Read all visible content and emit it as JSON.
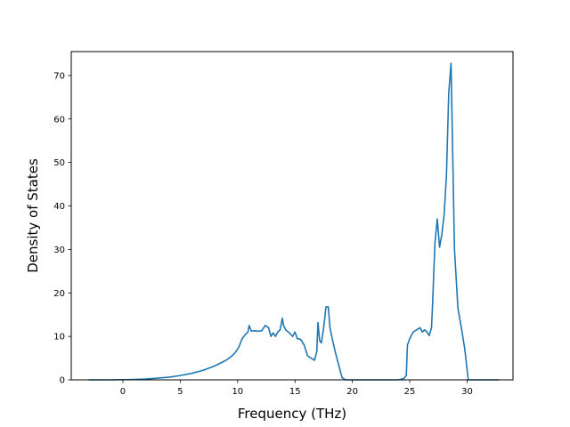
{
  "chart_data": {
    "type": "line",
    "title": "",
    "xlabel": "Frequency (THz)",
    "ylabel": "Density of States",
    "xlim": [
      -4.5,
      34.0
    ],
    "ylim": [
      0,
      75.5
    ],
    "xticks": [
      0,
      5,
      10,
      15,
      20,
      25,
      30
    ],
    "yticks": [
      0,
      10,
      20,
      30,
      40,
      50,
      60,
      70
    ],
    "grid": false,
    "colors": {
      "line": "#1f77b4"
    },
    "series": [
      {
        "name": "",
        "x": [
          -3.0,
          -2.0,
          -1.0,
          0.0,
          1.0,
          2.0,
          3.0,
          4.0,
          5.0,
          6.0,
          7.0,
          8.0,
          9.0,
          9.5,
          9.8,
          10.1,
          10.4,
          10.7,
          10.9,
          11.0,
          11.2,
          11.5,
          11.8,
          12.1,
          12.4,
          12.7,
          12.9,
          13.1,
          13.3,
          13.5,
          13.7,
          13.9,
          14.0,
          14.2,
          14.5,
          14.8,
          15.0,
          15.2,
          15.5,
          15.8,
          16.1,
          16.4,
          16.7,
          16.9,
          17.0,
          17.15,
          17.3,
          17.5,
          17.7,
          17.9,
          18.05,
          18.2,
          18.5,
          18.8,
          19.1,
          19.4,
          19.7,
          20.0,
          21.0,
          22.0,
          23.0,
          24.0,
          24.5,
          24.7,
          24.8,
          25.0,
          25.3,
          25.6,
          25.9,
          26.1,
          26.3,
          26.5,
          26.7,
          26.9,
          27.0,
          27.1,
          27.2,
          27.4,
          27.6,
          27.8,
          28.0,
          28.2,
          28.4,
          28.6,
          28.9,
          29.2,
          29.5,
          29.8,
          30.1,
          31.0,
          32.0,
          32.8
        ],
        "y": [
          0,
          0,
          0,
          0.05,
          0.1,
          0.2,
          0.4,
          0.6,
          1.0,
          1.5,
          2.2,
          3.2,
          4.5,
          5.5,
          6.3,
          7.5,
          9.5,
          10.5,
          11.0,
          12.5,
          11.2,
          11.3,
          11.2,
          11.3,
          12.5,
          12.0,
          10.0,
          10.8,
          10.0,
          11.0,
          11.5,
          14.2,
          12.5,
          11.5,
          10.8,
          10.0,
          11.0,
          9.5,
          9.3,
          8.0,
          5.5,
          5.0,
          4.5,
          6.5,
          13.2,
          9.0,
          8.5,
          12.0,
          16.8,
          16.8,
          12.0,
          10.0,
          6.5,
          3.5,
          0.5,
          0,
          0,
          0,
          0,
          0,
          0,
          0,
          0.3,
          1.0,
          8.0,
          9.5,
          11.0,
          11.5,
          12.0,
          11.0,
          11.5,
          11.0,
          10.2,
          12.0,
          18.0,
          25.0,
          31.5,
          37.0,
          30.5,
          33.5,
          38.0,
          47.0,
          66.0,
          72.8,
          30.0,
          16.5,
          12.0,
          7.0,
          0,
          0,
          0,
          0
        ]
      }
    ]
  }
}
